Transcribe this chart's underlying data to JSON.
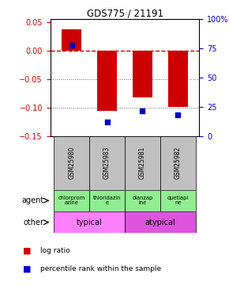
{
  "title": "GDS775 / 21191",
  "samples": [
    "GSM25980",
    "GSM25983",
    "GSM25981",
    "GSM25982"
  ],
  "log_ratio": [
    0.038,
    -0.105,
    -0.082,
    -0.098
  ],
  "percentile_rank": [
    0.78,
    0.12,
    0.22,
    0.18
  ],
  "bar_color": "#cc0000",
  "dot_color": "#0000cc",
  "ylim_left": [
    -0.15,
    0.055
  ],
  "yticks_left": [
    -0.15,
    -0.1,
    -0.05,
    0.0,
    0.05
  ],
  "yticks_right": [
    0.0,
    0.25,
    0.5,
    0.75,
    1.0
  ],
  "ytick_labels_right": [
    "0",
    "25",
    "50",
    "75",
    "100%"
  ],
  "agents": [
    "chlorprom\nazine",
    "thioridazin\ne",
    "olanzap\nine",
    "quetiapi\nne"
  ],
  "agent_colors": [
    "#90ee90",
    "#90ee90",
    "#90ee90",
    "#90ee90"
  ],
  "other_groups": [
    [
      "typical",
      2
    ],
    [
      "atypical",
      2
    ]
  ],
  "other_color_typical": "#ff80ff",
  "other_color_atypical": "#dd55dd",
  "hline_zero_color": "#cc0000",
  "hline_grid_color": "#666666",
  "left_tick_color": "#cc0000",
  "right_tick_color": "#0000cc",
  "bar_width": 0.55,
  "sample_label_color": "#c0c0c0"
}
